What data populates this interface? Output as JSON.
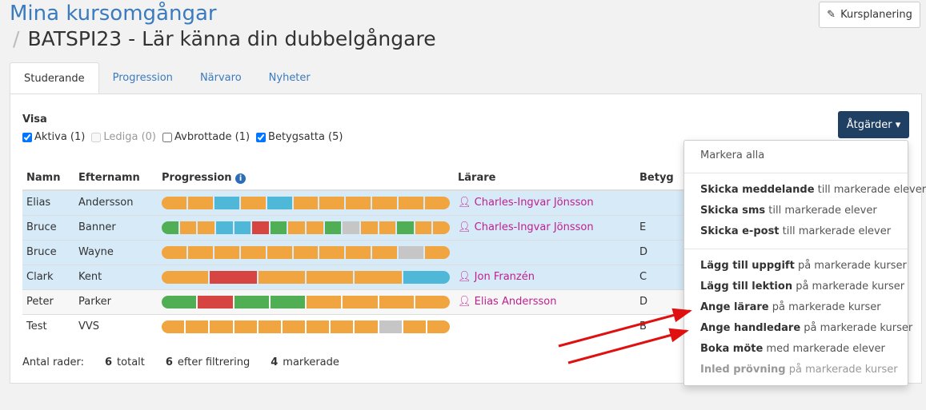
{
  "breadcrumb": "Mina kursomgångar",
  "page_title": "BATSPI23 - Lär känna din dubbelgångare",
  "course_planning_button": "Kursplanering",
  "tabs": [
    "Studerande",
    "Progression",
    "Närvaro",
    "Nyheter"
  ],
  "filter": {
    "label": "Visa",
    "options": [
      {
        "label": "Aktiva (1)",
        "checked": true
      },
      {
        "label": "Lediga (0)",
        "checked": false,
        "disabled": true
      },
      {
        "label": "Avbrottade (1)",
        "checked": false
      },
      {
        "label": "Betygsatta (5)",
        "checked": true
      }
    ]
  },
  "actions_button": "Åtgärder",
  "columns": [
    "Namn",
    "Efternamn",
    "Progression",
    "Lärare",
    "Betyg"
  ],
  "colors": {
    "o": "#f0a540",
    "b": "#4fb8d9",
    "r": "#d64541",
    "G": "#50ae54",
    "g": "#c6c6c6",
    "accent": "#1f3f63",
    "teacher": "#c0208f"
  },
  "rows": [
    {
      "first": "Elias",
      "last": "Andersson",
      "progress": "oobobooooго",
      "teacher": "Charles-Ingvar Jönsson",
      "grade": "",
      "state": "selected"
    },
    {
      "first": "Bruce",
      "last": "Banner",
      "progress": "GoobbrGooGgooGoo",
      "teacher": "Charles-Ingvar Jönsson",
      "grade": "E",
      "state": "selected"
    },
    {
      "first": "Bruce",
      "last": "Wayne",
      "progress": "ooooooooogo",
      "teacher": "",
      "grade": "D",
      "state": "selected"
    },
    {
      "first": "Clark",
      "last": "Kent",
      "progress": "orooob",
      "teacher": "Jon Franzén",
      "grade": "C",
      "state": "selected"
    },
    {
      "first": "Peter",
      "last": "Parker",
      "progress": "GrGGoooo",
      "teacher": "Elias Andersson",
      "grade": "D",
      "state": "hover"
    },
    {
      "first": "Test",
      "last": "VVS",
      "progress": "ooooooooogoo",
      "teacher": "",
      "grade": "B",
      "state": ""
    }
  ],
  "footer": {
    "label": "Antal rader:",
    "total": "6",
    "total_label": "totalt",
    "filtered": "6",
    "filtered_label": "efter filtrering",
    "marked": "4",
    "marked_label": "markerade"
  },
  "menu": {
    "groups": [
      [
        {
          "bold": "",
          "rest": "Markera alla"
        }
      ],
      [
        {
          "bold": "Skicka meddelande",
          "rest": " till markerade elever"
        },
        {
          "bold": "Skicka sms",
          "rest": " till markerade elever"
        },
        {
          "bold": "Skicka e-post",
          "rest": " till markerade elever"
        }
      ],
      [
        {
          "bold": "Lägg till uppgift",
          "rest": " på markerade kurser"
        },
        {
          "bold": "Lägg till lektion",
          "rest": " på markerade kurser"
        },
        {
          "bold": "Ange lärare",
          "rest": " på markerade kurser"
        },
        {
          "bold": "Ange handledare",
          "rest": " på markerade kurser"
        },
        {
          "bold": "Boka möte",
          "rest": " med markerade elever"
        },
        {
          "bold": "Inled prövning",
          "rest": " på markerade kurser",
          "disabled": true
        }
      ]
    ]
  }
}
